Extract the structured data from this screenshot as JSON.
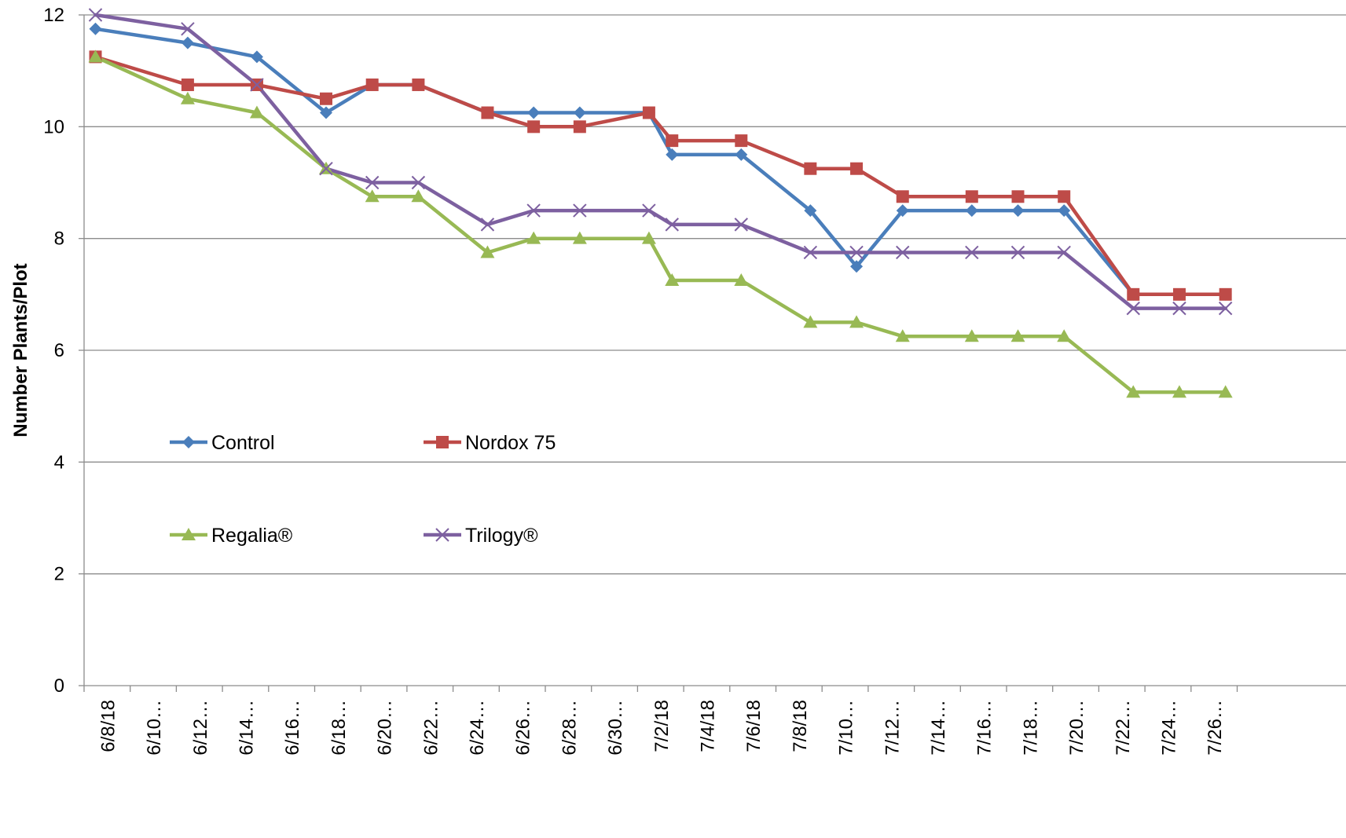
{
  "chart_data": {
    "type": "line",
    "title": "",
    "ylabel": "Number Plants/Plot",
    "xlabel": "",
    "ylim": [
      0,
      12
    ],
    "yticks": [
      0,
      2,
      4,
      6,
      8,
      10,
      12
    ],
    "xlim": [
      "2018-06-08",
      "2018-07-27"
    ],
    "x_tick_dates": [
      "2018-06-08",
      "2018-06-10",
      "2018-06-12",
      "2018-06-14",
      "2018-06-16",
      "2018-06-18",
      "2018-06-20",
      "2018-06-22",
      "2018-06-24",
      "2018-06-26",
      "2018-06-28",
      "2018-06-30",
      "2018-07-02",
      "2018-07-04",
      "2018-07-06",
      "2018-07-08",
      "2018-07-10",
      "2018-07-12",
      "2018-07-14",
      "2018-07-16",
      "2018-07-18",
      "2018-07-20",
      "2018-07-22",
      "2018-07-24",
      "2018-07-26"
    ],
    "x_tick_labels": [
      "6/8/18",
      "6/10…",
      "6/12…",
      "6/14…",
      "6/16…",
      "6/18…",
      "6/20…",
      "6/22…",
      "6/24…",
      "6/26…",
      "6/28…",
      "6/30…",
      "7/2/18",
      "7/4/18",
      "7/6/18",
      "7/8/18",
      "7/10…",
      "7/12…",
      "7/14…",
      "7/16…",
      "7/18…",
      "7/20…",
      "7/22…",
      "7/24…",
      "7/26…"
    ],
    "x": [
      "2018-06-08",
      "2018-06-12",
      "2018-06-15",
      "2018-06-18",
      "2018-06-20",
      "2018-06-22",
      "2018-06-25",
      "2018-06-27",
      "2018-06-29",
      "2018-07-02",
      "2018-07-03",
      "2018-07-06",
      "2018-07-09",
      "2018-07-11",
      "2018-07-13",
      "2018-07-16",
      "2018-07-18",
      "2018-07-20",
      "2018-07-23",
      "2018-07-25",
      "2018-07-27"
    ],
    "grid": true,
    "legend_position": "lower-left, inside plot",
    "series": [
      {
        "name": "Control",
        "color": "#4A7EBB",
        "marker": "diamond",
        "values": [
          11.75,
          11.5,
          11.25,
          10.25,
          10.75,
          10.75,
          10.25,
          10.25,
          10.25,
          10.25,
          9.5,
          9.5,
          8.5,
          7.5,
          8.5,
          8.5,
          8.5,
          8.5,
          7.0,
          7.0,
          7.0
        ]
      },
      {
        "name": "Nordox 75",
        "color": "#BE4B48",
        "marker": "square",
        "values": [
          11.25,
          10.75,
          10.75,
          10.5,
          10.75,
          10.75,
          10.25,
          10.0,
          10.0,
          10.25,
          9.75,
          9.75,
          9.25,
          9.25,
          8.75,
          8.75,
          8.75,
          8.75,
          7.0,
          7.0,
          7.0
        ]
      },
      {
        "name": "Regalia®",
        "color": "#98B954",
        "marker": "triangle",
        "values": [
          11.25,
          10.5,
          10.25,
          9.25,
          8.75,
          8.75,
          7.75,
          8.0,
          8.0,
          8.0,
          7.25,
          7.25,
          6.5,
          6.5,
          6.25,
          6.25,
          6.25,
          6.25,
          5.25,
          5.25,
          5.25
        ]
      },
      {
        "name": "Trilogy®",
        "color": "#7D60A0",
        "marker": "x",
        "values": [
          12.0,
          11.75,
          10.75,
          9.25,
          9.0,
          9.0,
          8.25,
          8.5,
          8.5,
          8.5,
          8.25,
          8.25,
          7.75,
          7.75,
          7.75,
          7.75,
          7.75,
          7.75,
          6.75,
          6.75,
          6.75
        ]
      }
    ]
  }
}
